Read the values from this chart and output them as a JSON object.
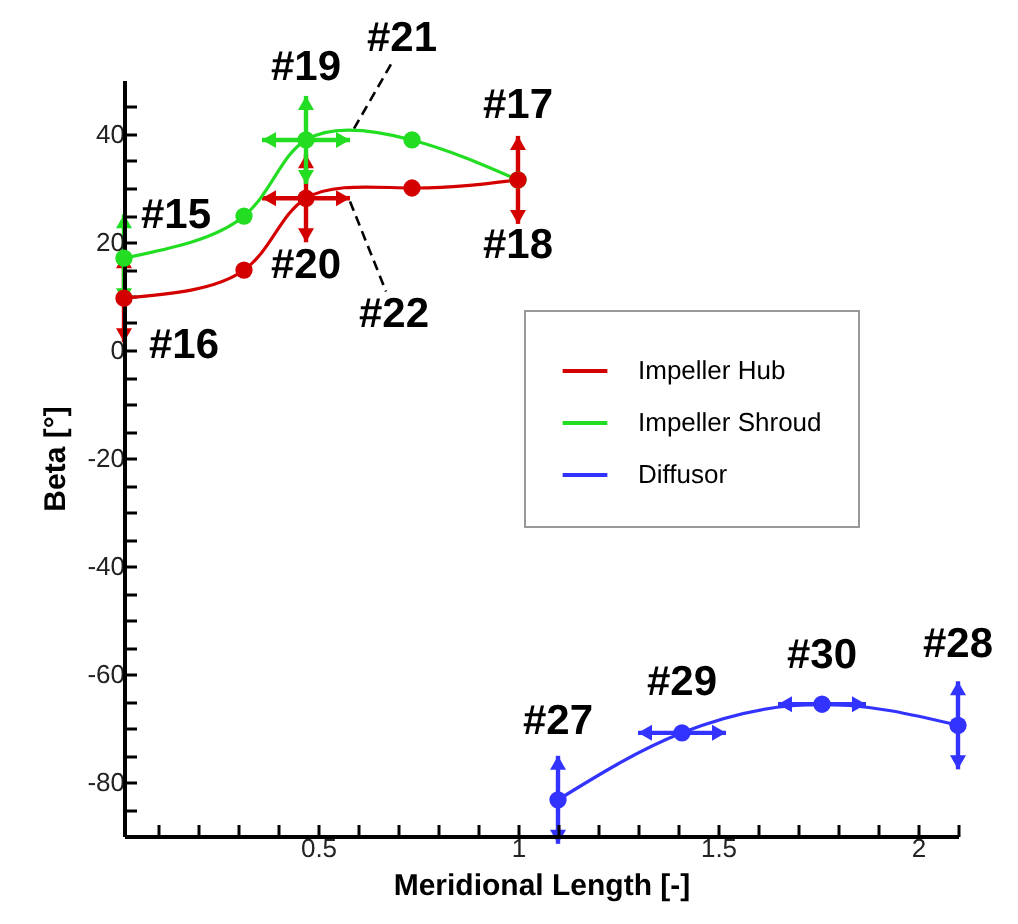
{
  "chart_data": {
    "type": "line",
    "xlabel": "Meridional Length [-]",
    "ylabel": "Beta [°]",
    "xlim": [
      0.015,
      2.1
    ],
    "ylim": [
      -90,
      50
    ],
    "xticks": [
      {
        "value": 0.1,
        "label": null
      },
      {
        "value": 0.2,
        "label": null
      },
      {
        "value": 0.3,
        "label": null
      },
      {
        "value": 0.4,
        "label": null
      },
      0.5,
      {
        "value": 0.6,
        "label": null
      },
      {
        "value": 0.7,
        "label": null
      },
      {
        "value": 0.8,
        "label": null
      },
      {
        "value": 0.9,
        "label": null
      },
      1,
      {
        "value": 1.1,
        "label": null
      },
      {
        "value": 1.2,
        "label": null
      },
      {
        "value": 1.3,
        "label": null
      },
      {
        "value": 1.4,
        "label": null
      },
      1.5,
      {
        "value": 1.6,
        "label": null
      },
      {
        "value": 1.7,
        "label": null
      },
      {
        "value": 1.8,
        "label": null
      },
      {
        "value": 1.9,
        "label": null
      },
      2,
      {
        "value": 2.1,
        "label": null
      }
    ],
    "yticks": [
      {
        "value": -85,
        "label": null
      },
      -80,
      {
        "value": -75,
        "label": null
      },
      {
        "value": -70,
        "label": null
      },
      {
        "value": -65,
        "label": null
      },
      -60,
      {
        "value": -55,
        "label": null
      },
      {
        "value": -50,
        "label": null
      },
      {
        "value": -45,
        "label": null
      },
      -40,
      {
        "value": -35,
        "label": null
      },
      {
        "value": -30,
        "label": null
      },
      {
        "value": -25,
        "label": null
      },
      -20,
      {
        "value": -15,
        "label": null
      },
      {
        "value": -10,
        "label": null
      },
      {
        "value": -5,
        "label": null
      },
      0,
      {
        "value": 5,
        "label": null
      },
      {
        "value": 10,
        "label": null
      },
      {
        "value": 15,
        "label": null
      },
      20,
      {
        "value": 25,
        "label": null
      },
      {
        "value": 30,
        "label": null
      },
      {
        "value": 35,
        "label": null
      },
      40,
      {
        "value": 45,
        "label": null
      }
    ],
    "grid": false,
    "legend": "right",
    "marker": "circle",
    "line_style": "solid",
    "series": [
      {
        "name": "Impeller Hub",
        "color": "#d40000",
        "x": [
          0.015,
          0.315,
          0.47,
          0.735,
          1.0
        ],
        "values": [
          9.6,
          14.8,
          28.1,
          30,
          31.5
        ]
      },
      {
        "name": "Impeller Shroud",
        "color": "#22dd22",
        "x": [
          0.015,
          0.315,
          0.47,
          0.735,
          1.0
        ],
        "values": [
          17,
          24.8,
          38.9,
          38.9,
          31.5
        ]
      },
      {
        "name": "Diffusor",
        "color": "#3333ff",
        "x": [
          1.1,
          1.41,
          1.76,
          2.1
        ],
        "values": [
          -83.3,
          -70.9,
          -65.6,
          -69.5
        ]
      }
    ],
    "annotations": [
      {
        "text": "#15",
        "x": 0.015,
        "y": 17
      },
      {
        "text": "#16",
        "x": 0.015,
        "y": 9.6
      },
      {
        "text": "#17",
        "x": 1.0,
        "y": 31.5
      },
      {
        "text": "#18",
        "x": 1.0,
        "y": 31.5
      },
      {
        "text": "#19",
        "x": 0.47,
        "y": 38.9
      },
      {
        "text": "#20",
        "x": 0.47,
        "y": 28.1
      },
      {
        "text": "#21",
        "x": 0.59,
        "y": 41
      },
      {
        "text": "#22",
        "x": 0.58,
        "y": 29
      },
      {
        "text": "#27",
        "x": 1.1,
        "y": -83.3
      },
      {
        "text": "#29",
        "x": 1.41,
        "y": -70.9
      },
      {
        "text": "#30",
        "x": 1.76,
        "y": -65.6
      },
      {
        "text": "#28",
        "x": 2.1,
        "y": -69.5
      }
    ]
  }
}
